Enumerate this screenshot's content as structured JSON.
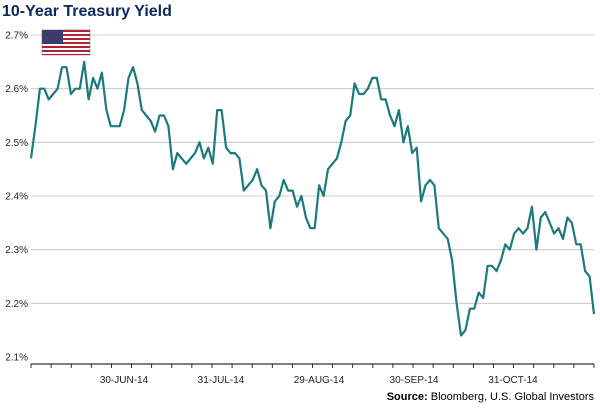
{
  "title": "10-Year Treasury Yield",
  "source": {
    "label": "Source:",
    "text": "Bloomberg, U.S. Global Investors"
  },
  "flag_icon": "us-flag-icon",
  "colors": {
    "line": "#1b7a7e",
    "title": "#0b2a5b",
    "grid": "#bfbfbf",
    "axis": "#000000"
  },
  "chart_data": {
    "type": "line",
    "title": "10-Year Treasury Yield",
    "xlabel": "",
    "ylabel": "",
    "ylim": [
      2.1,
      2.7
    ],
    "yticks": [
      2.1,
      2.2,
      2.3,
      2.4,
      2.5,
      2.6,
      2.7
    ],
    "ytick_labels": [
      "2.1%",
      "2.2%",
      "2.3%",
      "2.4%",
      "2.5%",
      "2.6%",
      "2.7%"
    ],
    "xticks": [
      "30-JUN-14",
      "31-JUL-14",
      "29-AUG-14",
      "30-SEP-14",
      "31-OCT-14"
    ],
    "grid": "horizontal",
    "series": [
      {
        "values": [
          2.47,
          2.53,
          2.6,
          2.6,
          2.58,
          2.59,
          2.6,
          2.64,
          2.64,
          2.59,
          2.6,
          2.6,
          2.65,
          2.58,
          2.62,
          2.6,
          2.63,
          2.56,
          2.53,
          2.53,
          2.53,
          2.56,
          2.62,
          2.64,
          2.61,
          2.56,
          2.55,
          2.54,
          2.52,
          2.55,
          2.55,
          2.53,
          2.45,
          2.48,
          2.47,
          2.46,
          2.47,
          2.48,
          2.5,
          2.47,
          2.49,
          2.46,
          2.56,
          2.56,
          2.49,
          2.48,
          2.48,
          2.47,
          2.41,
          2.42,
          2.43,
          2.45,
          2.42,
          2.41,
          2.34,
          2.39,
          2.4,
          2.43,
          2.41,
          2.41,
          2.38,
          2.4,
          2.36,
          2.34,
          2.34,
          2.42,
          2.4,
          2.45,
          2.46,
          2.47,
          2.5,
          2.54,
          2.55,
          2.61,
          2.59,
          2.59,
          2.6,
          2.62,
          2.62,
          2.58,
          2.58,
          2.55,
          2.53,
          2.56,
          2.5,
          2.53,
          2.48,
          2.49,
          2.39,
          2.42,
          2.43,
          2.42,
          2.34,
          2.33,
          2.32,
          2.28,
          2.2,
          2.14,
          2.15,
          2.19,
          2.19,
          2.22,
          2.21,
          2.27,
          2.27,
          2.26,
          2.28,
          2.31,
          2.3,
          2.33,
          2.34,
          2.33,
          2.34,
          2.38,
          2.3,
          2.36,
          2.37,
          2.35,
          2.33,
          2.34,
          2.32,
          2.36,
          2.35,
          2.31,
          2.31,
          2.26,
          2.25,
          2.18
        ]
      }
    ]
  }
}
